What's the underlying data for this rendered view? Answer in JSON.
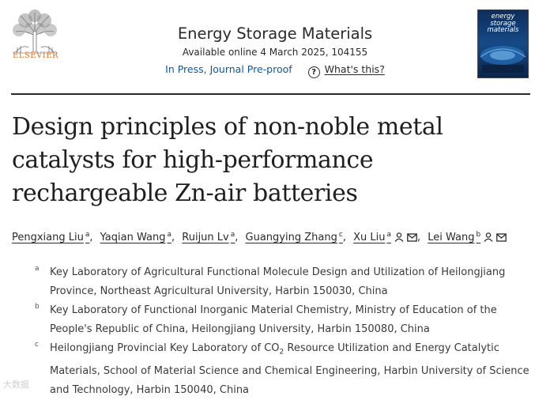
{
  "publisher": {
    "name": "ELSEVIER",
    "logo_icon": "elsevier-tree-logo"
  },
  "journal": {
    "title": "Energy Storage Materials",
    "availability": "Available online 4 March 2025, 104155",
    "status": "In Press, Journal Pre-proof",
    "help_link": "What's this?",
    "help_icon": "question-circle-icon",
    "cover_lines": [
      "energy",
      "storage",
      "materials"
    ]
  },
  "article": {
    "title": "Design principles of non-noble metal catalysts for high-performance rechargeable Zn-air batteries"
  },
  "authors": [
    {
      "name": "Pengxiang Liu",
      "aff": "a"
    },
    {
      "name": "Yaqian Wang",
      "aff": "a"
    },
    {
      "name": "Ruijun Lv",
      "aff": "a"
    },
    {
      "name": "Guangying Zhang",
      "aff": "c"
    },
    {
      "name": "Xu Liu",
      "aff": "a"
    },
    {
      "name": "Lei Wang",
      "aff": "b"
    }
  ],
  "affiliations": [
    {
      "label": "a",
      "text": "Key Laboratory of Agricultural Functional Molecule Design and Utilization of Heilongjiang Province, Northeast Agricultural University, Harbin 150030, China"
    },
    {
      "label": "b",
      "text": "Key Laboratory of Functional Inorganic Material Chemistry, Ministry of Education of the People's Republic of China, Heilongjiang University, Harbin 150080, China"
    },
    {
      "label": "c",
      "text_before": "Heilongjiang Provincial Key Laboratory of CO",
      "subscript": "2",
      "text_after": " Resource Utilization and Energy Catalytic Materials, School of Material Science and Chemical Engineering, Harbin University of Science and Technology, Harbin 150040, China"
    }
  ],
  "watermark": "大数据"
}
